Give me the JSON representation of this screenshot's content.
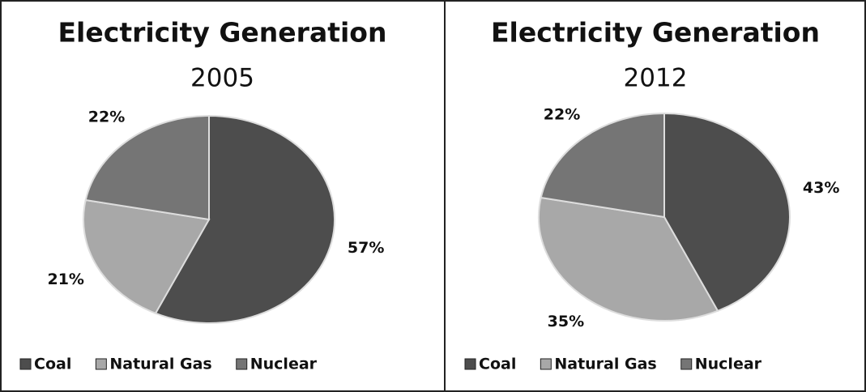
{
  "chart_data": [
    {
      "type": "pie",
      "title": "Electricity Generation",
      "subtitle": "2005",
      "categories": [
        "Coal",
        "Natural Gas",
        "Nuclear"
      ],
      "values": [
        57,
        21,
        22
      ],
      "value_labels": [
        "57%",
        "21%",
        "22%"
      ],
      "colors": [
        "#4d4d4d",
        "#a8a8a8",
        "#757575"
      ]
    },
    {
      "type": "pie",
      "title": "Electricity Generation",
      "subtitle": "2012",
      "categories": [
        "Coal",
        "Natural Gas",
        "Nuclear"
      ],
      "values": [
        43,
        35,
        22
      ],
      "value_labels": [
        "43%",
        "35%",
        "22%"
      ],
      "colors": [
        "#4d4d4d",
        "#a8a8a8",
        "#757575"
      ]
    }
  ]
}
